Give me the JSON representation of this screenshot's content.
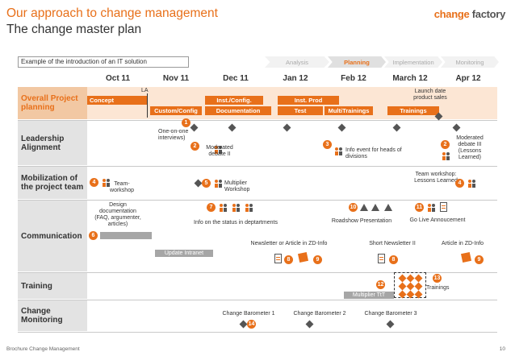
{
  "header": {
    "title": "Our approach to change management",
    "subtitle": "The change master plan",
    "logo_primary": "change",
    "logo_secondary": "factory",
    "example_label": "Example of the introduction of an IT solution"
  },
  "phases": [
    "Analysis",
    "Planning",
    "Implementation",
    "Monitoring"
  ],
  "active_phase": "Planning",
  "months": [
    "Oct 11",
    "Nov 11",
    "Dec 11",
    "Jan 12",
    "Feb 12",
    "March 12",
    "Apr 12"
  ],
  "rows": {
    "overall": "Overall Project planning",
    "leadership": "Leadership Alignment",
    "mobilization": "Mobilization of the project team",
    "communication": "Communication",
    "training": "Training",
    "monitoring": "Change Monitoring"
  },
  "overall_bars": {
    "la": "LA",
    "concept": "Concept",
    "custom_config": "Custom/Config",
    "inst_config": "Inst./Config.",
    "documentation": "Documentation",
    "inst_prod": "Inst. Prod",
    "test": "Test",
    "multi_trainings": "MultiTrainings",
    "trainings": "Trainings",
    "launch": "Launch date product sales"
  },
  "leadership": {
    "one_on_one": "One-on-one interviews)",
    "moderated_2": "Moderated debate II",
    "info_event": "Info event for heads of divisions",
    "moderated_3": "Moderated debate III (Lessons Learned)",
    "num_1": "1",
    "num_2a": "2",
    "num_3": "3",
    "num_2b": "2"
  },
  "mobilization": {
    "team_workshop": "Team-workshop",
    "multiplier_workshop": "Multiplier Workshop",
    "team_workshop_ll": "Team workshop: Lessons Learned",
    "num_4a": "4",
    "num_5": "5",
    "num_4b": "4"
  },
  "communication": {
    "design_doc": "Design documentation (FAQ, argumenter, articles)",
    "info_status": "Info on the status in deptartments",
    "roadshow": "Roadshow Presentation",
    "go_live": "Go Live Annoucement",
    "newsletter_article": "Newsletter or Article in ZD-Info",
    "short_newsletter": "Short Newsletter II",
    "article_zd": "Article in ZD-Info",
    "intranet": "Update Intranet",
    "num_6": "6",
    "num_7": "7",
    "num_8a": "8",
    "num_9a": "9",
    "num_10": "10",
    "num_11": "11",
    "num_8b": "8",
    "num_9b": "9"
  },
  "training": {
    "multiplier_ttt": "Multiplier TtT",
    "trainings": "Trainings",
    "num_12": "12",
    "num_13": "13"
  },
  "change_monitoring": {
    "barometer_1": "Change Barometer 1",
    "barometer_2": "Change Barometer 2",
    "barometer_3": "Change Barometer 3",
    "num_14": "14"
  },
  "footer": {
    "left": "Brochure Change Management",
    "page": "10"
  },
  "colors": {
    "accent": "#e8701a",
    "row_gray": "#e3e3e3",
    "row_orange": "#f2c8a3"
  }
}
